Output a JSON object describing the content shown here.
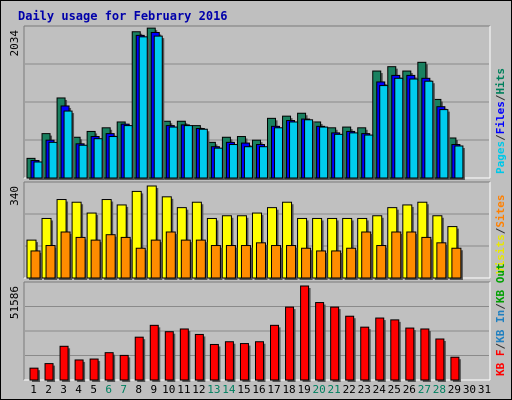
{
  "chart_data": {
    "type": "bar",
    "title": "Daily usage for February 2016",
    "categories": [
      "1",
      "2",
      "3",
      "4",
      "5",
      "6",
      "7",
      "8",
      "9",
      "10",
      "11",
      "12",
      "13",
      "14",
      "15",
      "16",
      "17",
      "18",
      "19",
      "20",
      "21",
      "22",
      "23",
      "24",
      "25",
      "26",
      "27",
      "28",
      "29",
      "30",
      "31"
    ],
    "weekend_days": [
      6,
      7,
      13,
      14,
      20,
      21,
      27,
      28
    ],
    "panels": [
      {
        "name": "pages-files-hits",
        "max_label": "2034",
        "ymax": 2034,
        "legend": [
          {
            "text": "Pages",
            "color": "#00c8e8"
          },
          {
            "text": "/",
            "color": "#333333"
          },
          {
            "text": "Files",
            "color": "#0000ff"
          },
          {
            "text": "/",
            "color": "#333333"
          },
          {
            "text": "Hits",
            "color": "#00805c"
          }
        ],
        "series": [
          {
            "name": "Hits",
            "color": "#1a8060",
            "values": [
              270,
              610,
              1100,
              560,
              640,
              690,
              770,
              2010,
              2060,
              780,
              780,
              720,
              490,
              560,
              570,
              520,
              820,
              850,
              890,
              770,
              690,
              700,
              690,
              1470,
              1530,
              1470,
              1590,
              1080,
              550,
              0,
              0
            ]
          },
          {
            "name": "Files",
            "color": "#0000ff",
            "values": [
              240,
              520,
              990,
              470,
              570,
              610,
              740,
              1960,
              2000,
              720,
              730,
              680,
              430,
              490,
              480,
              460,
              710,
              790,
              810,
              710,
              620,
              640,
              610,
              1320,
              1410,
              1410,
              1370,
              980,
              460,
              0,
              0
            ]
          },
          {
            "name": "Pages",
            "color": "#00ccee",
            "values": [
              220,
              490,
              920,
              450,
              540,
              570,
              720,
              1940,
              1950,
              700,
              720,
              670,
              410,
              460,
              430,
              430,
              690,
              770,
              800,
              700,
              600,
              620,
              590,
              1270,
              1370,
              1360,
              1330,
              940,
              440,
              0,
              0
            ]
          }
        ]
      },
      {
        "name": "visits-sites",
        "max_label": "340",
        "ymax": 340,
        "legend": [
          {
            "text": "Visits",
            "color": "#e8e800"
          },
          {
            "text": "/",
            "color": "#333333"
          },
          {
            "text": "Sites",
            "color": "#ff8000"
          }
        ],
        "series": [
          {
            "name": "Visits",
            "color": "#ffff00",
            "values": [
              140,
              220,
              290,
              280,
              240,
              290,
              270,
              320,
              340,
              300,
              260,
              280,
              220,
              230,
              230,
              240,
              260,
              280,
              220,
              220,
              220,
              220,
              220,
              230,
              260,
              270,
              280,
              230,
              190,
              0,
              0
            ]
          },
          {
            "name": "Sites",
            "color": "#ff8c00",
            "values": [
              100,
              120,
              170,
              150,
              140,
              160,
              150,
              110,
              140,
              170,
              140,
              140,
              120,
              120,
              120,
              130,
              120,
              120,
              110,
              100,
              100,
              110,
              170,
              120,
              170,
              170,
              150,
              130,
              110,
              0,
              0
            ]
          }
        ]
      },
      {
        "name": "kbytes",
        "max_label": "51586",
        "ymax": 51586,
        "legend": [
          {
            "text": "KB F",
            "color": "#ff0000"
          },
          {
            "text": "/",
            "color": "#333333"
          },
          {
            "text": "KB In",
            "color": "#2080c0"
          },
          {
            "text": "/",
            "color": "#333333"
          },
          {
            "text": "KB Out",
            "color": "#00a000"
          }
        ],
        "series": [
          {
            "name": "KB F",
            "color": "#ff0000",
            "values": [
              6500,
              9000,
              18500,
              11000,
              11500,
              15000,
              13500,
              23500,
              30000,
              26500,
              28000,
              25000,
              19500,
              21000,
              20000,
              21000,
              30000,
              40000,
              51586,
              42500,
              40000,
              35000,
              29000,
              34000,
              33000,
              28500,
              28000,
              22500,
              12500,
              0,
              0
            ]
          }
        ]
      }
    ]
  }
}
